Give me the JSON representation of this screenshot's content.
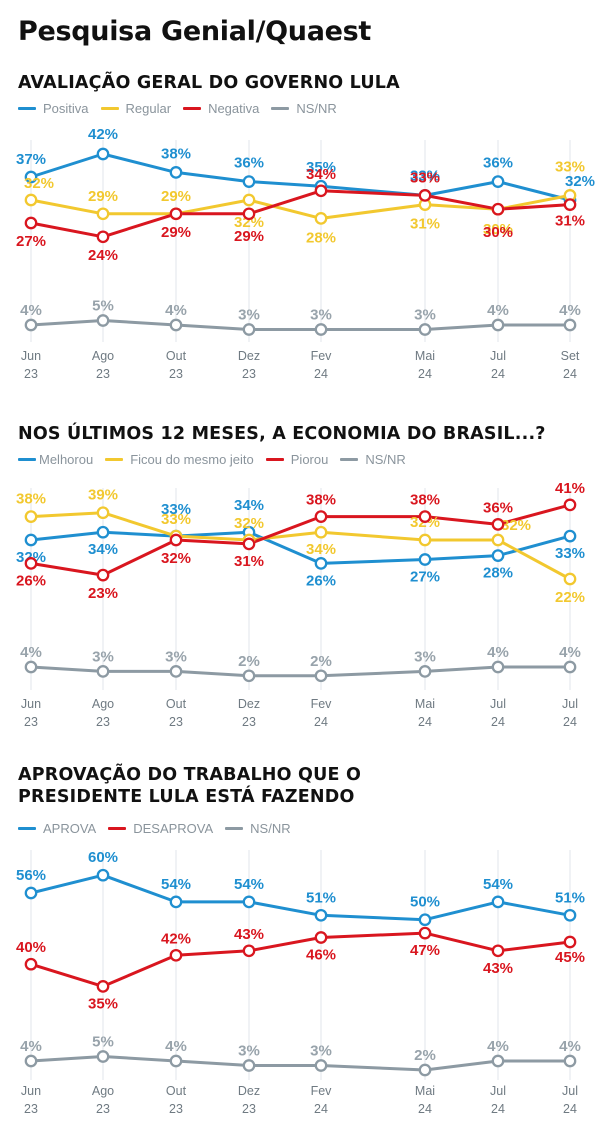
{
  "page": {
    "title": "Pesquisa Genial/Quaest"
  },
  "colors": {
    "blue": "#1f8fd0",
    "yellow": "#f2c82f",
    "red": "#d9161f",
    "gray": "#8d9aa3",
    "grid": "#e6eaee"
  },
  "chart_data": [
    {
      "type": "line",
      "title": "AVALIAÇÃO GERAL DO GOVERNO LULA",
      "categories": [
        "Jun 23",
        "Ago 23",
        "Out 23",
        "Dez 23",
        "Fev 24",
        "Mai 24",
        "Jul 24",
        "Set 24"
      ],
      "x_labels": [
        [
          "Jun",
          "23"
        ],
        [
          "Ago",
          "23"
        ],
        [
          "Out",
          "23"
        ],
        [
          "Dez",
          "23"
        ],
        [
          "Fev",
          "24"
        ],
        [
          "Mai",
          "24"
        ],
        [
          "Jul",
          "24"
        ],
        [
          "Set",
          "24"
        ]
      ],
      "series": [
        {
          "name": "Positiva",
          "color": "#1f8fd0",
          "values": [
            37,
            42,
            38,
            36,
            35,
            33,
            36,
            32
          ]
        },
        {
          "name": "Regular",
          "color": "#f2c82f",
          "values": [
            32,
            29,
            29,
            32,
            28,
            31,
            30,
            33
          ]
        },
        {
          "name": "Negativa",
          "color": "#d9161f",
          "values": [
            27,
            24,
            29,
            29,
            34,
            33,
            30,
            31
          ]
        },
        {
          "name": "NS/NR",
          "color": "#8d9aa3",
          "values": [
            4,
            5,
            4,
            3,
            3,
            3,
            4,
            4
          ]
        }
      ],
      "unit": "%",
      "legend": "top-left"
    },
    {
      "type": "line",
      "title": "NOS ÚLTIMOS 12 MESES, A ECONOMIA DO BRASIL...?",
      "categories": [
        "Jun 23",
        "Ago 23",
        "Out 23",
        "Dez 23",
        "Fev 24",
        "Mai 24",
        "Jul 24",
        "Jul 24"
      ],
      "x_labels": [
        [
          "Jun",
          "23"
        ],
        [
          "Ago",
          "23"
        ],
        [
          "Out",
          "23"
        ],
        [
          "Dez",
          "23"
        ],
        [
          "Fev",
          "24"
        ],
        [
          "Mai",
          "24"
        ],
        [
          "Jul",
          "24"
        ],
        [
          "Jul",
          "24"
        ]
      ],
      "series": [
        {
          "name": "Melhorou",
          "color": "#1f8fd0",
          "values": [
            32,
            34,
            33,
            34,
            26,
            27,
            28,
            33
          ]
        },
        {
          "name": "Ficou do mesmo jeito",
          "color": "#f2c82f",
          "values": [
            38,
            39,
            33,
            32,
            34,
            32,
            32,
            22
          ]
        },
        {
          "name": "Piorou",
          "color": "#d9161f",
          "values": [
            26,
            23,
            32,
            31,
            38,
            38,
            36,
            41
          ]
        },
        {
          "name": "NS/NR",
          "color": "#8d9aa3",
          "values": [
            4,
            3,
            3,
            2,
            2,
            3,
            4,
            4
          ]
        }
      ],
      "unit": "%",
      "legend": "top-left"
    },
    {
      "type": "line",
      "title": "APROVAÇÃO DO TRABALHO QUE O PRESIDENTE LULA ESTÁ FAZENDO",
      "title_lines": [
        "APROVAÇÃO DO TRABALHO QUE O",
        "PRESIDENTE LULA ESTÁ FAZENDO"
      ],
      "categories": [
        "Jun 23",
        "Ago 23",
        "Out 23",
        "Dez 23",
        "Fev 24",
        "Mai 24",
        "Jul 24",
        "Jul 24"
      ],
      "x_labels": [
        [
          "Jun",
          "23"
        ],
        [
          "Ago",
          "23"
        ],
        [
          "Out",
          "23"
        ],
        [
          "Dez",
          "23"
        ],
        [
          "Fev",
          "24"
        ],
        [
          "Mai",
          "24"
        ],
        [
          "Jul",
          "24"
        ],
        [
          "Jul",
          "24"
        ]
      ],
      "series": [
        {
          "name": "APROVA",
          "color": "#1f8fd0",
          "values": [
            56,
            60,
            54,
            54,
            51,
            50,
            54,
            51
          ]
        },
        {
          "name": "DESAPROVA",
          "color": "#d9161f",
          "values": [
            40,
            35,
            42,
            43,
            46,
            47,
            43,
            45
          ]
        },
        {
          "name": "NS/NR",
          "color": "#8d9aa3",
          "values": [
            4,
            5,
            4,
            3,
            3,
            2,
            4,
            4
          ]
        }
      ],
      "unit": "%",
      "legend": "top-left"
    }
  ]
}
